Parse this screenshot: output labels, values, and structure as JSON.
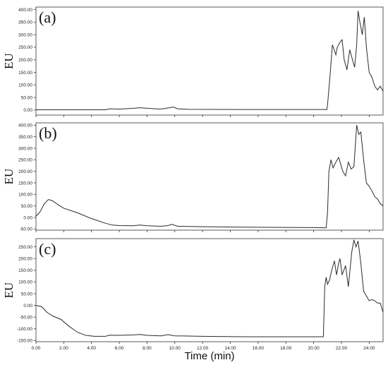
{
  "chart_data": [
    {
      "type": "line",
      "panel_label": "(a)",
      "ylabel": "EU",
      "xlim": [
        0,
        25
      ],
      "ylim": [
        -20,
        410
      ],
      "ytick_values": [
        0,
        50,
        100,
        150,
        200,
        250,
        300,
        350,
        400
      ],
      "ytick_labels": [
        "0.00",
        "50.00",
        "100.00",
        "150.00",
        "200.00",
        "250.00",
        "300.00",
        "350.00",
        "400.00"
      ],
      "series": [
        {
          "x": [
            0,
            3,
            5.0,
            5.3,
            6,
            7,
            7.5,
            8,
            9,
            9.7,
            9.9,
            10.2,
            11,
            15,
            20,
            20.95,
            21.0,
            21.2,
            21.35,
            21.6,
            21.7,
            21.9,
            22.05,
            22.2,
            22.4,
            22.6,
            22.8,
            22.95,
            23.1,
            23.2,
            23.3,
            23.5,
            23.65,
            23.8,
            24.0,
            24.2,
            24.4,
            24.6,
            24.8,
            25.0
          ],
          "y": [
            1,
            1,
            1,
            5,
            4,
            7,
            9,
            7,
            4,
            10,
            12,
            5,
            3,
            2,
            2,
            2,
            20,
            150,
            260,
            220,
            250,
            270,
            280,
            200,
            160,
            240,
            200,
            170,
            260,
            395,
            360,
            300,
            370,
            250,
            150,
            130,
            95,
            80,
            95,
            75
          ]
        }
      ]
    },
    {
      "type": "line",
      "panel_label": "(b)",
      "ylabel": "EU",
      "xlim": [
        0,
        25
      ],
      "ylim": [
        -55,
        410
      ],
      "ytick_values": [
        -50,
        0,
        50,
        100,
        150,
        200,
        250,
        300,
        350,
        400
      ],
      "ytick_labels": [
        "-50.00",
        "0.00",
        "50.00",
        "100.00",
        "150.00",
        "200.00",
        "250.00",
        "300.00",
        "350.00",
        "400.00"
      ],
      "series": [
        {
          "x": [
            0,
            0.3,
            0.6,
            0.9,
            1.2,
            1.6,
            2.0,
            3.0,
            4.0,
            5.0,
            5.5,
            6,
            7,
            7.5,
            8,
            9,
            9.5,
            9.8,
            10.2,
            12,
            15,
            20,
            20.9,
            21.0,
            21.1,
            21.25,
            21.4,
            21.6,
            21.8,
            21.9,
            22.1,
            22.3,
            22.5,
            22.7,
            22.9,
            23.1,
            23.25,
            23.4,
            23.6,
            23.8,
            24.0,
            24.2,
            24.4,
            24.6,
            24.8,
            25.0
          ],
          "y": [
            5,
            25,
            60,
            78,
            72,
            55,
            40,
            20,
            -5,
            -25,
            -33,
            -35,
            -36,
            -33,
            -36,
            -38,
            -35,
            -30,
            -38,
            -40,
            -42,
            -44,
            -45,
            20,
            200,
            250,
            215,
            240,
            260,
            240,
            200,
            180,
            240,
            210,
            220,
            400,
            360,
            370,
            250,
            150,
            135,
            115,
            90,
            80,
            60,
            50
          ]
        }
      ]
    },
    {
      "type": "line",
      "panel_label": "(c)",
      "ylabel": "EU",
      "xlim": [
        0,
        25
      ],
      "ylim": [
        -155,
        285
      ],
      "ytick_values": [
        -150,
        -100,
        -50,
        0,
        50,
        100,
        150,
        200,
        250
      ],
      "ytick_labels": [
        "-150.00",
        "-100.00",
        "-50.00",
        "0.00",
        "50.00",
        "100.00",
        "150.00",
        "200.00",
        "250.00"
      ],
      "series": [
        {
          "x": [
            0,
            0.4,
            0.8,
            1.2,
            1.8,
            2.4,
            3.0,
            3.6,
            4.2,
            5.0,
            5.3,
            6,
            7,
            7.5,
            8,
            9,
            9.5,
            10,
            12,
            15,
            20,
            20.7,
            20.8,
            20.9,
            21.0,
            21.15,
            21.3,
            21.5,
            21.65,
            21.8,
            21.9,
            22.05,
            22.3,
            22.5,
            22.75,
            22.9,
            23.05,
            23.2,
            23.4,
            23.6,
            23.8,
            24.0,
            24.2,
            24.4,
            24.6,
            24.8,
            25.0
          ],
          "y": [
            0,
            -5,
            -30,
            -45,
            -60,
            -90,
            -115,
            -128,
            -132,
            -132,
            -127,
            -128,
            -126,
            -124,
            -128,
            -130,
            -125,
            -130,
            -132,
            -134,
            -134,
            -134,
            80,
            120,
            90,
            110,
            150,
            190,
            130,
            180,
            200,
            130,
            170,
            80,
            230,
            280,
            250,
            275,
            180,
            60,
            40,
            20,
            25,
            20,
            10,
            10,
            -30
          ]
        }
      ]
    }
  ],
  "x_axis": {
    "label": "Time (min)",
    "tick_values": [
      0,
      2,
      4,
      6,
      8,
      10,
      12,
      14,
      16,
      18,
      20,
      22,
      24
    ],
    "tick_labels": [
      "0.00",
      "2.00",
      "4.00",
      "6.00",
      "8.00",
      "10.00",
      "12.00",
      "14.00",
      "16.00",
      "18.00",
      "20.00",
      "22.00",
      "24.00"
    ]
  }
}
